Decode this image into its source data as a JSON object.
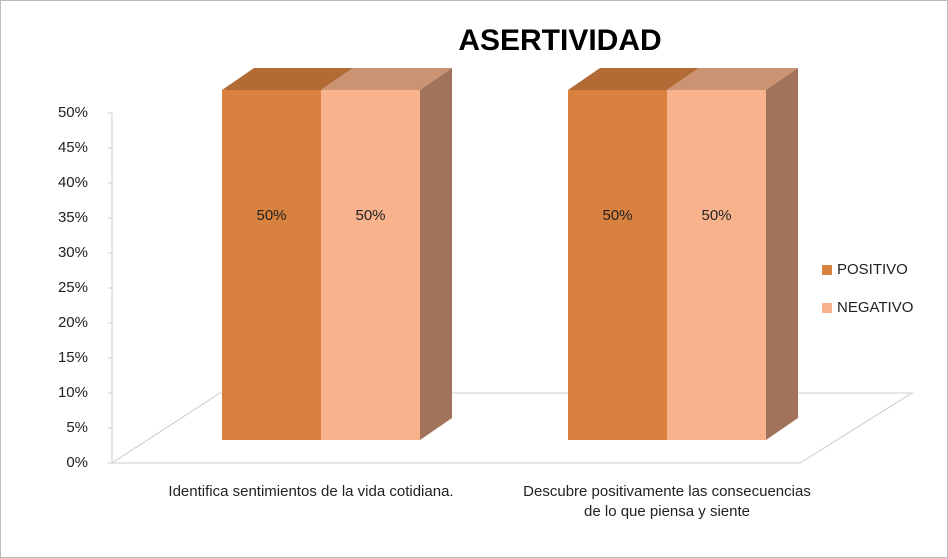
{
  "chart_data": {
    "type": "bar3d",
    "title": "ASERTIVIDAD",
    "categories": [
      "Identifica sentimientos de la vida cotidiana.",
      "Descubre positivamente las consecuencias de lo que piensa y siente"
    ],
    "series": [
      {
        "name": "POSITIVO",
        "color": "#d9823f",
        "values": [
          50,
          50
        ],
        "value_labels": [
          "50%",
          "50%"
        ]
      },
      {
        "name": "NEGATIVO",
        "color": "#f9b38c",
        "values": [
          50,
          50
        ],
        "value_labels": [
          "50%",
          "50%"
        ]
      }
    ],
    "ylim": [
      0,
      50
    ],
    "yticks": [
      {
        "value": 0,
        "label": "0%"
      },
      {
        "value": 5,
        "label": "5%"
      },
      {
        "value": 10,
        "label": "10%"
      },
      {
        "value": 15,
        "label": "15%"
      },
      {
        "value": 20,
        "label": "20%"
      },
      {
        "value": 25,
        "label": "25%"
      },
      {
        "value": 30,
        "label": "30%"
      },
      {
        "value": 35,
        "label": "35%"
      },
      {
        "value": 40,
        "label": "40%"
      },
      {
        "value": 45,
        "label": "45%"
      },
      {
        "value": 50,
        "label": "50%"
      }
    ],
    "legend": "right"
  }
}
